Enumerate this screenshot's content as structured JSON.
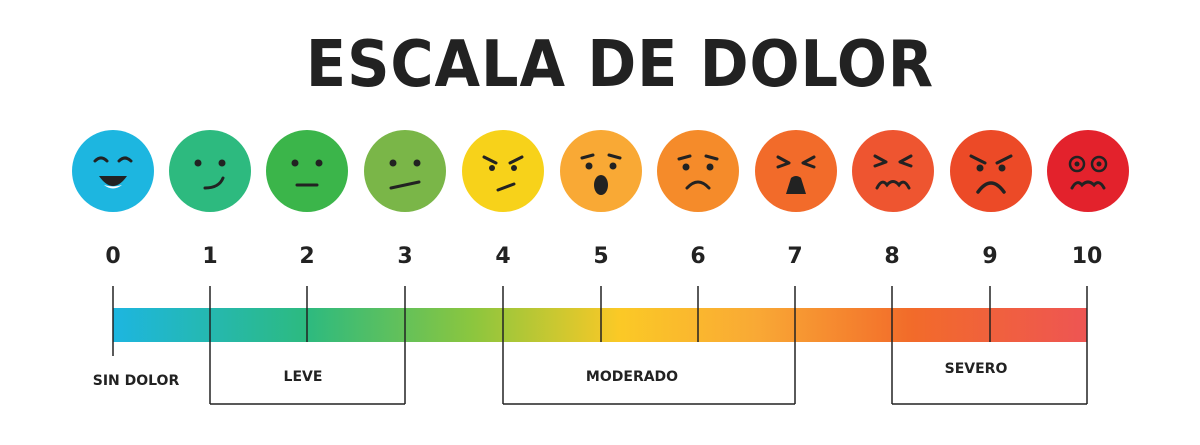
{
  "title": "ESCALA DE DOLOR",
  "levels": [
    {
      "number": "0",
      "color": "#1db6e0",
      "face": "happy-face-icon"
    },
    {
      "number": "1",
      "color": "#2dba7f",
      "face": "smirk-face-icon"
    },
    {
      "number": "2",
      "color": "#3bb54a",
      "face": "neutral-face-icon"
    },
    {
      "number": "3",
      "color": "#7ab648",
      "face": "skeptical-face-icon"
    },
    {
      "number": "4",
      "color": "#f7d21a",
      "face": "annoyed-face-icon"
    },
    {
      "number": "5",
      "color": "#f9a935",
      "face": "surprised-face-icon"
    },
    {
      "number": "6",
      "color": "#f58b2a",
      "face": "sad-face-icon"
    },
    {
      "number": "7",
      "color": "#f26b2a",
      "face": "distressed-face-icon"
    },
    {
      "number": "8",
      "color": "#ee5530",
      "face": "grimace-face-icon"
    },
    {
      "number": "9",
      "color": "#ec4a27",
      "face": "angry-face-icon"
    },
    {
      "number": "10",
      "color": "#e3222c",
      "face": "agony-face-icon"
    }
  ],
  "categories": {
    "none": "SIN DOLOR",
    "mild": "LEVE",
    "moderate": "MODERADO",
    "severe": "SEVERO"
  },
  "gradient_colors": [
    "#1db6e0",
    "#2dba7f",
    "#8cc63e",
    "#fbc926",
    "#f9a935",
    "#f26b2a",
    "#ee5553"
  ]
}
